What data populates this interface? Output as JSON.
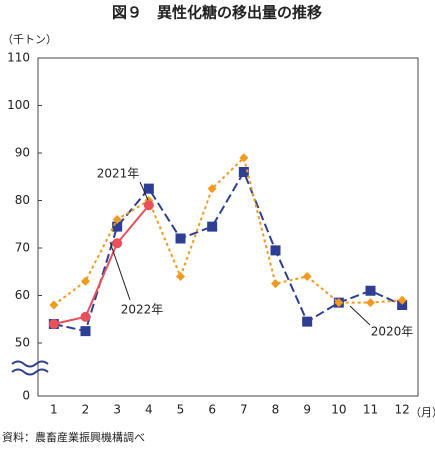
{
  "chart_data": {
    "type": "line",
    "title": "図９　異性化糖の移出量の推移",
    "y_unit": "（千トン）",
    "x_unit": "（月）",
    "source": "資料：農畜産業振興機構調べ",
    "categories": [
      "1",
      "2",
      "3",
      "4",
      "5",
      "6",
      "7",
      "8",
      "9",
      "10",
      "11",
      "12"
    ],
    "series": [
      {
        "name": "2020年",
        "color": "#2e3f93",
        "marker": "square",
        "line": "dashed",
        "values": [
          54,
          52.5,
          74.5,
          82.5,
          72,
          74.5,
          86,
          69.5,
          54.5,
          58.5,
          61,
          58
        ]
      },
      {
        "name": "2021年",
        "color": "#f39a1e",
        "marker": "diamond",
        "line": "dotted",
        "values": [
          58,
          63,
          76,
          80,
          64,
          82.5,
          89,
          62.5,
          64,
          58.5,
          58.5,
          59
        ]
      },
      {
        "name": "2022年",
        "color": "#e8505b",
        "marker": "circle",
        "line": "solid",
        "values": [
          54,
          55.5,
          71,
          79,
          null,
          null,
          null,
          null,
          null,
          null,
          null,
          null
        ]
      }
    ],
    "ylim": [
      0,
      110
    ],
    "yticks": [
      0,
      50,
      60,
      70,
      80,
      90,
      100,
      110
    ],
    "axis_break": true,
    "grid": false
  }
}
